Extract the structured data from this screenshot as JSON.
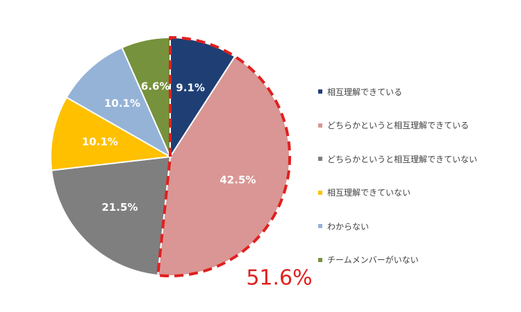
{
  "chart_data": {
    "type": "pie",
    "title": "",
    "start_angle_deg": 0,
    "direction": "clockwise",
    "slices": [
      {
        "label": "相互理解できている",
        "value": 9.1,
        "value_label": "9.1%",
        "color": "#1f3f74"
      },
      {
        "label": "どちらかというと相互理解できている",
        "value": 42.5,
        "value_label": "42.5%",
        "color": "#d99694"
      },
      {
        "label": "どちらかというと相互理解できていない",
        "value": 21.5,
        "value_label": "21.5%",
        "color": "#7f7f7f"
      },
      {
        "label": "相互理解できていない",
        "value": 10.1,
        "value_label": "10.1%",
        "color": "#ffc000"
      },
      {
        "label": "わからない",
        "value": 10.1,
        "value_label": "10.1%",
        "color": "#95b3d7"
      },
      {
        "label": "チームメンバーがいない",
        "value": 6.6,
        "value_label": "6.6%",
        "color": "#76923c"
      }
    ],
    "highlight": {
      "slices": [
        0,
        1
      ],
      "value_label": "51.6%",
      "color": "#e0201f",
      "style": "dashed-outline"
    },
    "legend_position": "right"
  }
}
